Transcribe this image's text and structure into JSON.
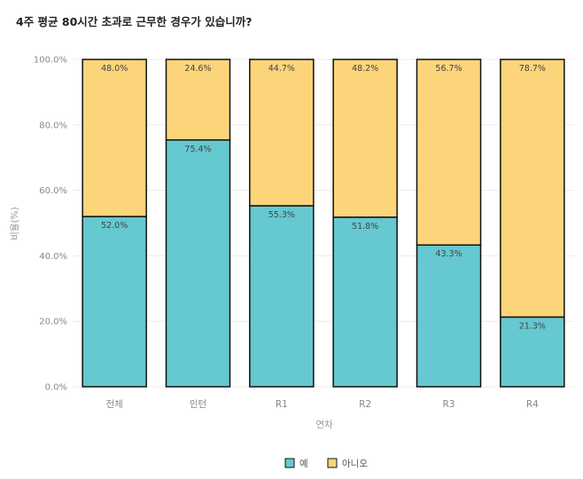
{
  "chart_data": {
    "type": "bar",
    "stacked": true,
    "title": "4주 평균 80시간 초과로 근무한 경우가 있습니까?",
    "xlabel": "연차",
    "ylabel": "비율(%)",
    "categories": [
      "전체",
      "인턴",
      "R1",
      "R2",
      "R3",
      "R4"
    ],
    "series": [
      {
        "name": "예",
        "values": [
          52.0,
          75.4,
          55.3,
          51.8,
          43.3,
          21.3
        ],
        "color": "#66c8d0",
        "labels": [
          "52.0%",
          "75.4%",
          "55.3%",
          "51.8%",
          "43.3%",
          "21.3%"
        ]
      },
      {
        "name": "아니오",
        "values": [
          48.0,
          24.6,
          44.7,
          48.2,
          56.7,
          78.7
        ],
        "color": "#fcd47a",
        "labels": [
          "48.0%",
          "24.6%",
          "44.7%",
          "48.2%",
          "56.7%",
          "78.7%"
        ]
      }
    ],
    "ylim": [
      0,
      100
    ],
    "yticks": [
      "0.0%",
      "20.0%",
      "40.0%",
      "60.0%",
      "80.0%",
      "100.0%"
    ],
    "ytick_values": [
      0,
      20,
      40,
      60,
      80,
      100
    ],
    "grid": true,
    "legend_position": "bottom"
  }
}
